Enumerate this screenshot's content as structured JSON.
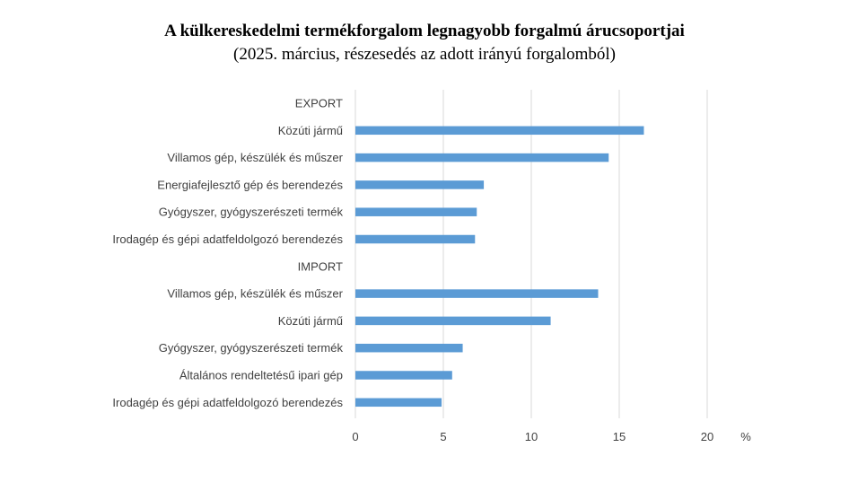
{
  "chart_data": {
    "type": "bar",
    "orientation": "horizontal",
    "title": "A külkereskedelmi termékforgalom legnagyobb forgalmú árucsoportjai",
    "subtitle": "(2025. március, részesedés az adott irányú forgalomból)",
    "xlabel": "%",
    "ylabel": "",
    "xlim": [
      0,
      20
    ],
    "xticks": [
      0,
      5,
      10,
      15,
      20
    ],
    "grid": true,
    "legend": "none",
    "bar_color": "#5b9bd5",
    "categories": [
      "EXPORT",
      "Közúti jármű",
      "Villamos gép, készülék és műszer",
      "Energiafejlesztő gép és berendezés",
      "Gyógyszer, gyógyszerészeti termék",
      "Irodagép és gépi adatfeldolgozó berendezés",
      "IMPORT",
      "Villamos gép, készülék és műszer",
      "Közúti jármű",
      "Gyógyszer, gyógyszerészeti termék",
      "Általános rendeltetésű ipari gép",
      "Irodagép és gépi adatfeldolgozó berendezés"
    ],
    "values": [
      null,
      16.4,
      14.4,
      7.3,
      6.9,
      6.8,
      null,
      13.8,
      11.1,
      6.1,
      5.5,
      4.9
    ]
  }
}
